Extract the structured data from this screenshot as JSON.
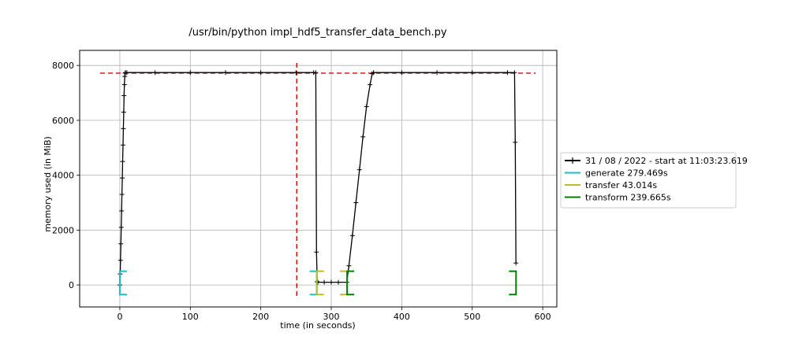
{
  "chart_data": {
    "type": "line",
    "title": "/usr/bin/python impl_hdf5_transfer_data_bench.py",
    "xlabel": "time (in seconds)",
    "ylabel": "memory used (in MiB)",
    "xlim": [
      -57,
      620
    ],
    "ylim": [
      -800,
      8550
    ],
    "xticks": [
      0,
      100,
      200,
      300,
      400,
      500,
      600
    ],
    "yticks": [
      0,
      2000,
      4000,
      6000,
      8000
    ],
    "grid": true,
    "legend_position": "right",
    "series": [
      {
        "name": "31 / 08 / 2022 - start at 11:03:23.619",
        "color": "#000000",
        "marker": "+",
        "x": [
          0,
          0.5,
          1,
          1.5,
          2,
          2.5,
          3,
          3.5,
          4,
          4.5,
          5,
          5.5,
          6,
          6.5,
          7,
          7.5,
          8,
          10,
          50,
          100,
          150,
          200,
          250,
          275,
          278,
          279,
          280,
          281,
          290,
          300,
          310,
          322,
          325,
          330,
          335,
          340,
          345,
          350,
          355,
          358,
          360,
          400,
          450,
          500,
          550,
          560,
          561,
          562
        ],
        "y": [
          0,
          400,
          900,
          1500,
          2100,
          2700,
          3300,
          3900,
          4500,
          5100,
          5700,
          6300,
          6900,
          7300,
          7600,
          7720,
          7740,
          7740,
          7740,
          7740,
          7740,
          7740,
          7740,
          7740,
          7740,
          1200,
          120,
          100,
          100,
          100,
          100,
          100,
          700,
          1800,
          3000,
          4200,
          5400,
          6500,
          7300,
          7700,
          7740,
          7740,
          7740,
          7740,
          7740,
          7740,
          5200,
          800
        ]
      }
    ],
    "reference_lines": [
      {
        "orientation": "horizontal",
        "y": 7720,
        "x_range": [
          -28,
          590
        ],
        "color": "#e00000",
        "style": "dashed"
      },
      {
        "orientation": "vertical",
        "x": 251,
        "y_range": [
          -400,
          8100
        ],
        "color": "#e00000",
        "style": "dashed"
      }
    ],
    "phases": [
      {
        "name": "generate 279.469s",
        "color": "#17becf",
        "start": 0,
        "end": 279.469
      },
      {
        "name": "transfer 43.014s",
        "color": "#bcbd22",
        "start": 279.469,
        "end": 322.483
      },
      {
        "name": "transform 239.665s",
        "color": "#008000",
        "start": 322.483,
        "end": 562.148
      }
    ],
    "bracket_y": [
      -350,
      500
    ]
  }
}
